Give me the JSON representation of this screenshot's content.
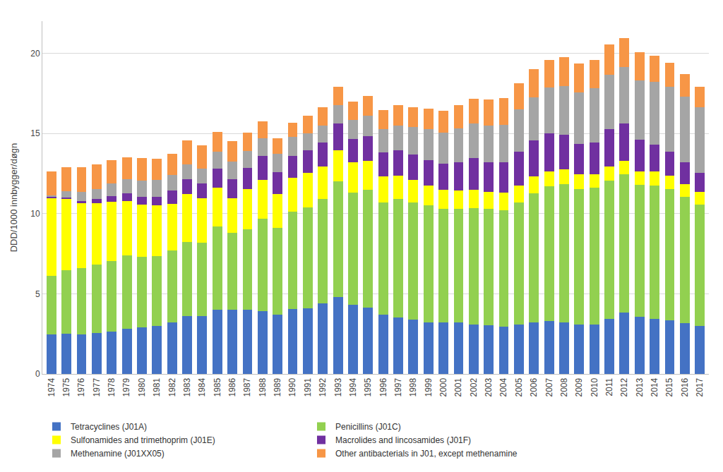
{
  "chart_data": {
    "type": "bar",
    "stacked": true,
    "grid": true,
    "legend": "bottom",
    "y_label": "DDD/1000 innbygger/døgn",
    "ylim": [
      0,
      22
    ],
    "yticks": [
      0,
      5,
      10,
      15,
      20
    ],
    "categories": [
      "1974",
      "1975",
      "1976",
      "1977",
      "1978",
      "1979",
      "1980",
      "1981",
      "1982",
      "1983",
      "1984",
      "1985",
      "1986",
      "1987",
      "1988",
      "1989",
      "1990",
      "1991",
      "1992",
      "1993",
      "1994",
      "1995",
      "1996",
      "1997",
      "1998",
      "1999",
      "2000",
      "2001",
      "2002",
      "2003",
      "2004",
      "2005",
      "2006",
      "2007",
      "2008",
      "2009",
      "2010",
      "2011",
      "2012",
      "2013",
      "2014",
      "2015",
      "2016",
      "2017"
    ],
    "series": [
      {
        "name": "Tetracyclines (J01A)",
        "color": "#4472C4",
        "values": [
          2.45,
          2.5,
          2.45,
          2.55,
          2.65,
          2.8,
          2.9,
          3.0,
          3.2,
          3.6,
          3.6,
          4.0,
          4.0,
          4.0,
          3.9,
          3.7,
          4.05,
          4.1,
          4.4,
          4.8,
          4.3,
          4.15,
          3.7,
          3.5,
          3.4,
          3.2,
          3.2,
          3.2,
          3.1,
          3.05,
          2.95,
          3.1,
          3.2,
          3.3,
          3.2,
          3.1,
          3.1,
          3.45,
          3.85,
          3.55,
          3.45,
          3.35,
          3.15,
          3.0
        ]
      },
      {
        "name": "Penicillins (J01C)",
        "color": "#92D050",
        "values": [
          3.65,
          3.95,
          4.15,
          4.25,
          4.4,
          4.6,
          4.4,
          4.35,
          4.5,
          4.65,
          4.6,
          5.2,
          4.8,
          5.0,
          5.8,
          5.4,
          6.05,
          6.3,
          6.5,
          7.2,
          7.0,
          7.35,
          7.0,
          7.4,
          7.3,
          7.3,
          7.1,
          7.1,
          7.25,
          7.25,
          7.25,
          7.6,
          8.05,
          8.4,
          8.65,
          8.45,
          8.5,
          8.6,
          8.6,
          8.25,
          8.3,
          8.2,
          7.9,
          7.55
        ]
      },
      {
        "name": "Sulfonamides and trimethoprim (J01E)",
        "color": "#FFFF00",
        "values": [
          4.85,
          4.45,
          4.05,
          3.85,
          3.7,
          3.4,
          3.25,
          3.15,
          2.9,
          2.95,
          2.75,
          2.4,
          2.15,
          2.55,
          2.4,
          2.1,
          2.15,
          2.15,
          2.05,
          1.95,
          1.9,
          1.8,
          1.6,
          1.45,
          1.4,
          1.25,
          1.2,
          1.15,
          1.15,
          1.05,
          1.1,
          1.05,
          1.05,
          0.95,
          0.9,
          0.9,
          0.85,
          0.9,
          0.85,
          0.85,
          0.9,
          0.8,
          0.8,
          0.8
        ]
      },
      {
        "name": "Macrolides and lincosamides (J01F)",
        "color": "#7030A0",
        "values": [
          0.1,
          0.1,
          0.15,
          0.25,
          0.35,
          0.45,
          0.5,
          0.55,
          0.85,
          0.95,
          0.95,
          1.2,
          1.2,
          1.3,
          1.5,
          1.4,
          1.35,
          1.4,
          1.5,
          1.65,
          1.45,
          1.55,
          1.5,
          1.6,
          1.6,
          1.6,
          1.6,
          1.75,
          1.95,
          1.85,
          1.9,
          2.1,
          2.25,
          2.35,
          2.15,
          1.9,
          2.0,
          2.3,
          2.3,
          1.95,
          1.65,
          1.5,
          1.35,
          1.2
        ]
      },
      {
        "name": "Methenamine (J01XX05)",
        "color": "#A5A5A5",
        "values": [
          0.1,
          0.4,
          0.55,
          0.65,
          0.8,
          0.9,
          1.0,
          1.05,
          0.95,
          0.9,
          0.9,
          1.05,
          1.1,
          1.05,
          1.1,
          1.15,
          1.2,
          1.05,
          1.05,
          1.15,
          1.2,
          1.25,
          1.45,
          1.55,
          1.7,
          1.9,
          1.95,
          2.1,
          2.15,
          2.3,
          2.35,
          2.65,
          2.7,
          2.85,
          3.05,
          3.2,
          3.35,
          3.4,
          3.55,
          3.7,
          3.9,
          4.05,
          4.1,
          4.1
        ]
      },
      {
        "name": "Other antibacterials in J01, except methenamine",
        "color": "#F79646",
        "values": [
          1.5,
          1.5,
          1.55,
          1.5,
          1.45,
          1.35,
          1.4,
          1.3,
          1.35,
          1.5,
          1.45,
          1.25,
          1.25,
          1.15,
          1.05,
          0.95,
          0.85,
          1.1,
          1.15,
          1.15,
          1.15,
          1.25,
          1.2,
          1.25,
          1.25,
          1.3,
          1.35,
          1.45,
          1.55,
          1.6,
          1.65,
          1.65,
          1.75,
          1.75,
          1.8,
          1.8,
          1.8,
          1.9,
          1.8,
          1.75,
          1.65,
          1.5,
          1.4,
          1.25
        ]
      }
    ]
  }
}
